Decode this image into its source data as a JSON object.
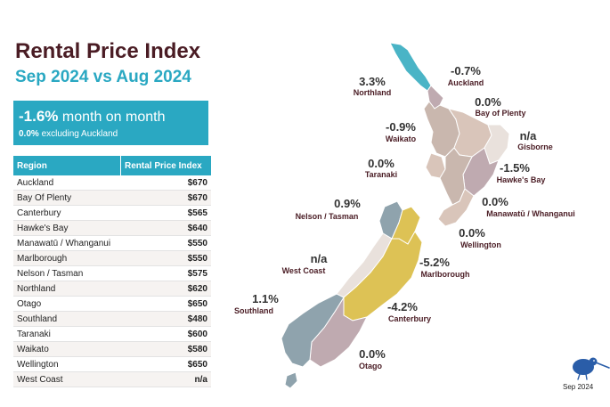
{
  "header": {
    "title": "Rental Price Index",
    "subtitle": "Sep 2024 vs Aug 2024"
  },
  "summary": {
    "change": "-1.6%",
    "change_suffix": " month on month",
    "ex_value": "0.0%",
    "ex_suffix": " excluding Auckland"
  },
  "table": {
    "headers": [
      "Region",
      "Rental Price Index"
    ],
    "rows": [
      {
        "region": "Auckland",
        "value": "$670"
      },
      {
        "region": "Bay Of Plenty",
        "value": "$670"
      },
      {
        "region": "Canterbury",
        "value": "$565"
      },
      {
        "region": "Hawke's Bay",
        "value": "$640"
      },
      {
        "region": "Manawatū / Whanganui",
        "value": "$550"
      },
      {
        "region": "Marlborough",
        "value": "$550"
      },
      {
        "region": "Nelson / Tasman",
        "value": "$575"
      },
      {
        "region": "Northland",
        "value": "$620"
      },
      {
        "region": "Otago",
        "value": "$650"
      },
      {
        "region": "Southland",
        "value": "$480"
      },
      {
        "region": "Taranaki",
        "value": "$600"
      },
      {
        "region": "Waikato",
        "value": "$580"
      },
      {
        "region": "Wellington",
        "value": "$650"
      },
      {
        "region": "West Coast",
        "value": "n/a"
      }
    ]
  },
  "map_labels": {
    "northland": {
      "pct": "3.3%",
      "name": "Northland"
    },
    "auckland": {
      "pct": "-0.7%",
      "name": "Auckland"
    },
    "bay_of_plenty": {
      "pct": "0.0%",
      "name": "Bay of Plenty"
    },
    "waikato": {
      "pct": "-0.9%",
      "name": "Waikato"
    },
    "gisborne": {
      "pct": "n/a",
      "name": "Gisborne"
    },
    "taranaki": {
      "pct": "0.0%",
      "name": "Taranaki"
    },
    "hawkes_bay": {
      "pct": "-1.5%",
      "name": "Hawke's Bay"
    },
    "manawatu": {
      "pct": "0.0%",
      "name": "Manawatū / Whanganui"
    },
    "wellington": {
      "pct": "0.0%",
      "name": "Wellington"
    },
    "nelson": {
      "pct": "0.9%",
      "name": "Nelson / Tasman"
    },
    "west_coast": {
      "pct": "n/a",
      "name": "West Coast"
    },
    "marlborough": {
      "pct": "-5.2%",
      "name": "Marlborough"
    },
    "southland": {
      "pct": "1.1%",
      "name": "Southland"
    },
    "canterbury": {
      "pct": "-4.2%",
      "name": "Canterbury"
    },
    "otago": {
      "pct": "0.0%",
      "name": "Otago"
    }
  },
  "colors": {
    "accent": "#2aa8c2",
    "title": "#4a1c24",
    "up_strong": "#4ab4c6",
    "slight_up": "#8fa3ad",
    "neutral": "#c9b7ae",
    "slight_down": "#d9c5ba",
    "down": "#bfaab0",
    "down_strong": "#ddc255",
    "na": "#e9e1dc"
  },
  "footer": {
    "date": "Sep 2024",
    "logo_icon": "kiwi-bird-icon"
  }
}
